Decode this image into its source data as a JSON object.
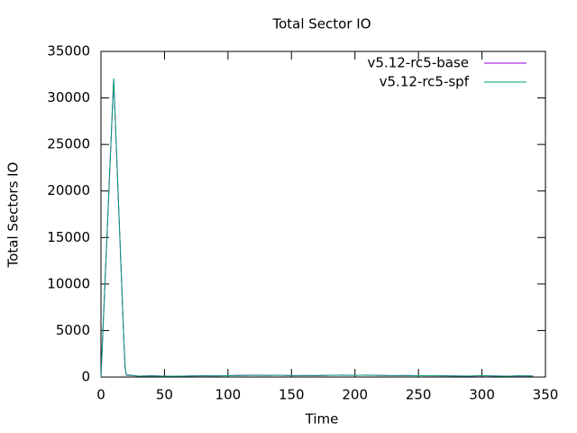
{
  "chart_data": {
    "type": "line",
    "title": "Total Sector IO",
    "x_label": "Time",
    "y_label": "Total Sectors IO",
    "x": [
      0,
      1,
      2,
      3,
      4,
      5,
      6,
      7,
      8,
      9,
      10,
      11,
      12,
      13,
      14,
      15,
      16,
      17,
      18,
      19,
      20,
      30,
      40,
      50,
      60,
      70,
      80,
      90,
      100,
      110,
      120,
      130,
      140,
      150,
      160,
      170,
      180,
      190,
      200,
      210,
      220,
      230,
      240,
      250,
      260,
      270,
      280,
      290,
      300,
      310,
      320,
      330,
      340
    ],
    "series": [
      {
        "name": "v5.12-rc5-base",
        "color": "#9400d3",
        "values": [
          0,
          3200,
          6400,
          9600,
          12800,
          16000,
          19200,
          22400,
          25600,
          28800,
          32000,
          28500,
          25000,
          21500,
          18000,
          14500,
          11000,
          7500,
          4000,
          1000,
          200,
          100,
          150,
          100,
          80,
          120,
          150,
          130,
          150,
          180,
          200,
          180,
          200,
          150,
          170,
          150,
          180,
          200,
          180,
          200,
          180,
          150,
          170,
          150,
          130,
          150,
          120,
          100,
          150,
          120,
          100,
          130,
          120
        ]
      },
      {
        "name": "v5.12-rc5-spf",
        "color": "#009e73",
        "values": [
          0,
          3300,
          6500,
          9700,
          12900,
          16100,
          19300,
          22500,
          25700,
          28900,
          32100,
          28600,
          25100,
          21600,
          18100,
          14600,
          11100,
          7600,
          4100,
          1100,
          250,
          100,
          120,
          80,
          100,
          110,
          130,
          120,
          140,
          160,
          180,
          170,
          190,
          160,
          160,
          170,
          190,
          210,
          190,
          190,
          170,
          160,
          160,
          140,
          150,
          130,
          110,
          110,
          160,
          110,
          90,
          140,
          100
        ]
      }
    ],
    "xlim": [
      0,
      350
    ],
    "ylim": [
      0,
      35000
    ],
    "xticks": [
      0,
      50,
      100,
      150,
      200,
      250,
      300,
      350
    ],
    "yticks": [
      0,
      5000,
      10000,
      15000,
      20000,
      25000,
      30000,
      35000
    ],
    "legend": "top-right"
  }
}
